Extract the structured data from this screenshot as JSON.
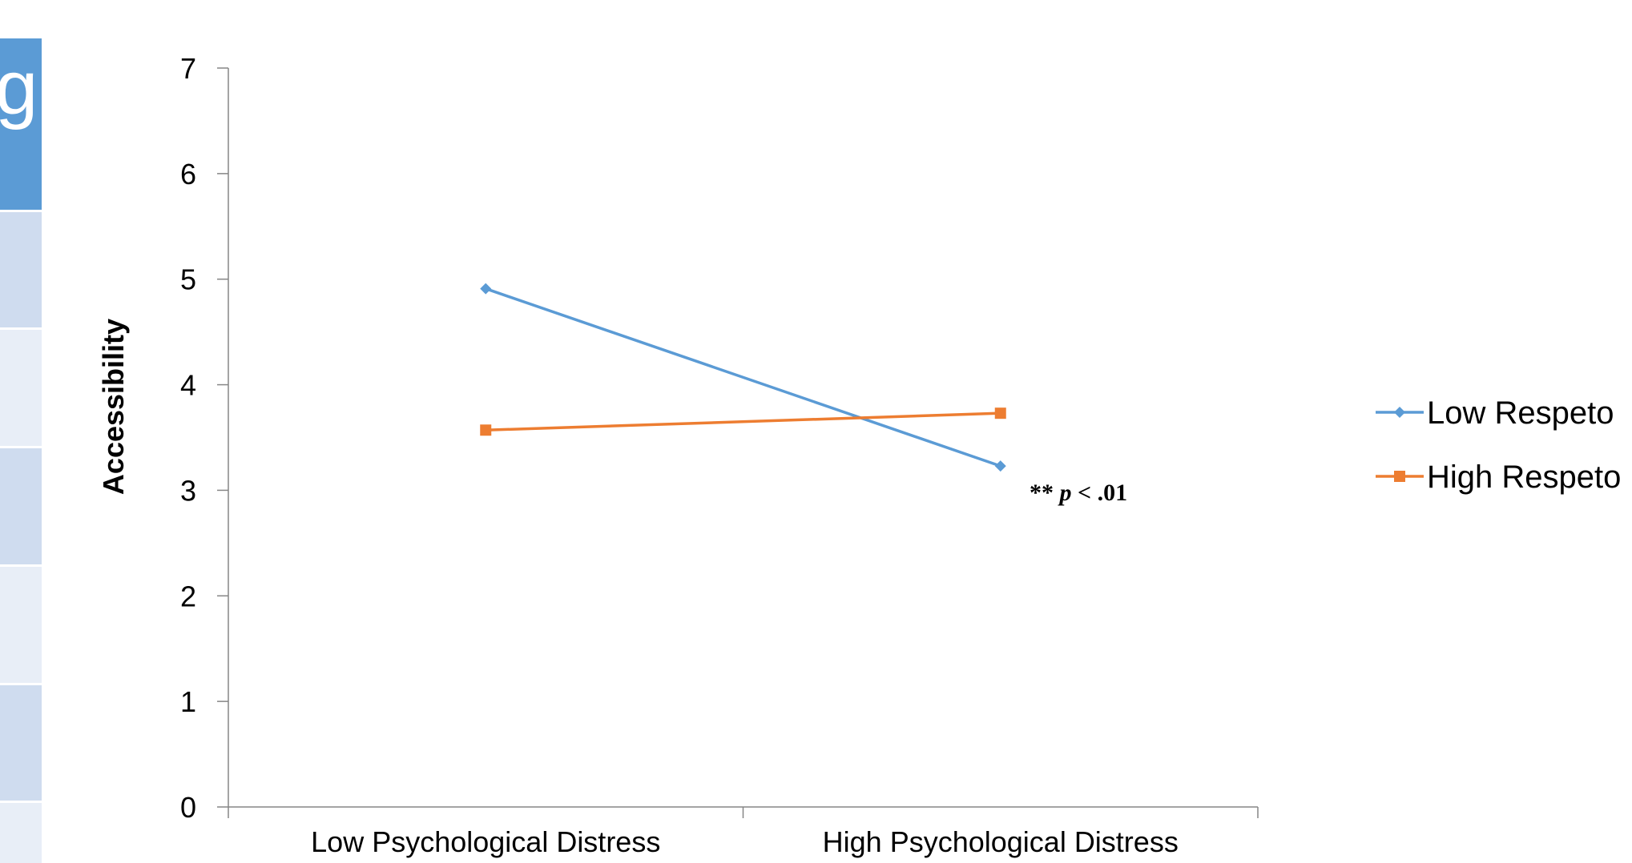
{
  "background_panel": {
    "glyph": "g",
    "colors": [
      "#5b9bd5",
      "#cfdcef",
      "#e8eef7",
      "#cfdcef",
      "#e8eef7",
      "#cfdcef",
      "#e8eef7"
    ]
  },
  "chart_data": {
    "type": "line",
    "title": "",
    "xlabel": "",
    "ylabel": "Accessibility",
    "categories": [
      "Low Psychological Distress",
      "High Psychological Distress"
    ],
    "ylim": [
      0,
      7
    ],
    "yticks": [
      0,
      1,
      2,
      3,
      4,
      5,
      6,
      7
    ],
    "grid": false,
    "legend_position": "right",
    "series": [
      {
        "name": "Low Respeto",
        "values": [
          4.91,
          3.23
        ],
        "color": "#5b9bd5",
        "marker": "diamond"
      },
      {
        "name": "High Respeto",
        "values": [
          3.57,
          3.73
        ],
        "color": "#ed7d31",
        "marker": "square"
      }
    ],
    "annotation": {
      "prefix": "** ",
      "italic": "p",
      "suffix": " < .01"
    }
  }
}
